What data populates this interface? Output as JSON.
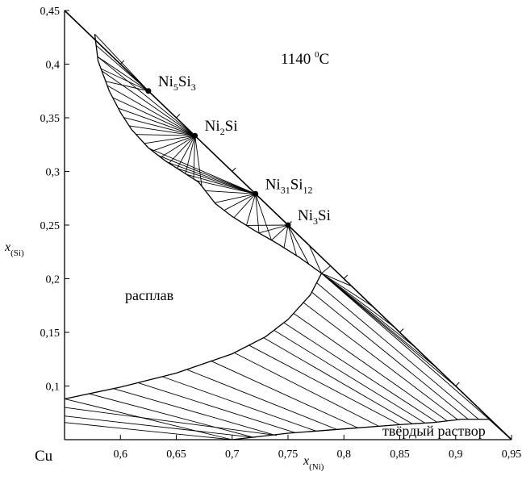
{
  "chart_data": {
    "type": "ternary-section",
    "title": "1140 °C",
    "title_main": "1140 ",
    "title_sup": "0",
    "title_unit": "C",
    "corner_label": "Cu",
    "xlabel_main": "x",
    "xlabel_sub": "(Ni)",
    "ylabel_main": "x",
    "ylabel_sub": "(Si)",
    "xlim": [
      0.55,
      0.95
    ],
    "ylim": [
      0.05,
      0.45
    ],
    "x_ticks": [
      0.6,
      0.65,
      0.7,
      0.75,
      0.8,
      0.85,
      0.9,
      0.95
    ],
    "x_tick_labels": [
      "0,6",
      "0,65",
      "0,7",
      "0,75",
      "0,8",
      "0,85",
      "0,9",
      "0,95"
    ],
    "y_ticks": [
      0.1,
      0.15,
      0.2,
      0.25,
      0.3,
      0.35,
      0.4,
      0.45
    ],
    "y_tick_labels": [
      "0,1",
      "0,15",
      "0,2",
      "0,25",
      "0,3",
      "0,35",
      "0,4",
      "0,45"
    ],
    "diagonal_ticks": [
      0.6,
      0.65,
      0.7,
      0.75,
      0.8,
      0.85,
      0.9
    ],
    "regions": {
      "liquid": "расплав",
      "solid_solution": "твёрдый раствор"
    },
    "phases": [
      {
        "key": "ni5si3",
        "base": "Ni",
        "sub1": "5",
        "mid": "Si",
        "sub2": "3",
        "x": 0.625,
        "y": 0.375
      },
      {
        "key": "ni2si",
        "base": "Ni",
        "sub1": "2",
        "mid": "Si",
        "sub2": "",
        "x": 0.6667,
        "y": 0.3333
      },
      {
        "key": "ni31si12",
        "base": "Ni",
        "sub1": "31",
        "mid": "Si",
        "sub2": "12",
        "x": 0.7209,
        "y": 0.2791
      },
      {
        "key": "ni3si",
        "base": "Ni",
        "sub1": "3",
        "mid": "Si",
        "sub2": "",
        "x": 0.75,
        "y": 0.25
      }
    ],
    "liquidus_upper": {
      "x": [
        0.577,
        0.58,
        0.59,
        0.6,
        0.61,
        0.625,
        0.64,
        0.655,
        0.67,
        0.685,
        0.7,
        0.72,
        0.74,
        0.76,
        0.78
      ],
      "y": [
        0.428,
        0.403,
        0.375,
        0.355,
        0.339,
        0.322,
        0.31,
        0.3,
        0.29,
        0.27,
        0.258,
        0.245,
        0.233,
        0.22,
        0.205
      ]
    },
    "liquidus_lower": {
      "x": [
        0.55,
        0.6,
        0.65,
        0.7,
        0.73,
        0.75,
        0.77,
        0.78
      ],
      "y": [
        0.088,
        0.099,
        0.112,
        0.13,
        0.146,
        0.162,
        0.185,
        0.205
      ]
    },
    "solidus": {
      "x": [
        0.7,
        0.75,
        0.8,
        0.85,
        0.88,
        0.905,
        0.93
      ],
      "y": [
        0.05,
        0.056,
        0.06,
        0.064,
        0.066,
        0.069,
        0.069
      ]
    }
  }
}
